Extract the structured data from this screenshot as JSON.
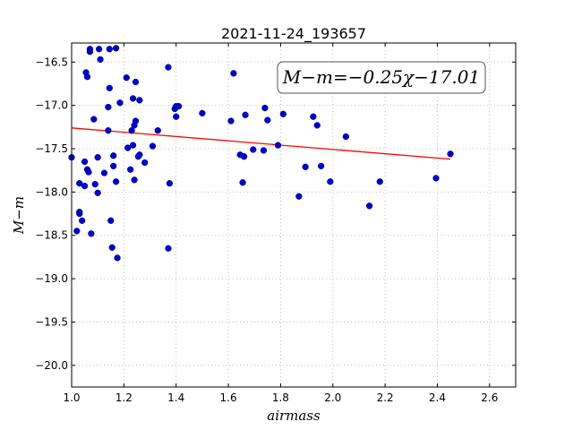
{
  "chart_data": {
    "type": "scatter",
    "title": "2021-11-24_193657",
    "xlabel": "airmass",
    "ylabel": "M−m",
    "xlim": [
      1.0,
      2.7
    ],
    "ylim": [
      -20.25,
      -16.28
    ],
    "y_inverted": true,
    "grid": true,
    "xticks": [
      1.0,
      1.2,
      1.4,
      1.6,
      1.8,
      2.0,
      2.2,
      2.4,
      2.6
    ],
    "xtick_labels": [
      "1.0",
      "1.2",
      "1.4",
      "1.6",
      "1.8",
      "2.0",
      "2.2",
      "2.4",
      "2.6"
    ],
    "yticks": [
      -16.5,
      -17.0,
      -17.5,
      -18.0,
      -18.5,
      -19.0,
      -19.5,
      -20.0
    ],
    "ytick_labels": [
      "−16.5",
      "−17.0",
      "−17.5",
      "−18.0",
      "−18.5",
      "−19.0",
      "−19.5",
      "−20.0"
    ],
    "annotation": "M−m=−0.25χ−17.01",
    "colors": {
      "points": "#0000cc",
      "fit": "#ff0000",
      "grid": "#b0b0b0"
    },
    "fit_line": {
      "x": [
        1.0,
        2.45
      ],
      "y": [
        -17.26,
        -17.62
      ]
    },
    "points": [
      [
        1.0,
        -17.6
      ],
      [
        1.02,
        -18.45
      ],
      [
        1.03,
        -17.9
      ],
      [
        1.03,
        -18.23
      ],
      [
        1.03,
        -18.25
      ],
      [
        1.04,
        -18.33
      ],
      [
        1.05,
        -17.65
      ],
      [
        1.05,
        -17.93
      ],
      [
        1.055,
        -16.62
      ],
      [
        1.06,
        -16.67
      ],
      [
        1.06,
        -17.74
      ],
      [
        1.065,
        -17.77
      ],
      [
        1.07,
        -16.35
      ],
      [
        1.07,
        -16.38
      ],
      [
        1.075,
        -18.48
      ],
      [
        1.085,
        -17.16
      ],
      [
        1.09,
        -17.91
      ],
      [
        1.1,
        -17.6
      ],
      [
        1.1,
        -18.01
      ],
      [
        1.105,
        -16.35
      ],
      [
        1.11,
        -16.47
      ],
      [
        1.125,
        -17.78
      ],
      [
        1.14,
        -17.02
      ],
      [
        1.14,
        -17.29
      ],
      [
        1.145,
        -16.35
      ],
      [
        1.145,
        -16.8
      ],
      [
        1.15,
        -18.33
      ],
      [
        1.155,
        -18.64
      ],
      [
        1.16,
        -17.58
      ],
      [
        1.16,
        -17.7
      ],
      [
        1.17,
        -16.34
      ],
      [
        1.17,
        -17.88
      ],
      [
        1.175,
        -18.76
      ],
      [
        1.185,
        -16.97
      ],
      [
        1.21,
        -16.68
      ],
      [
        1.215,
        -17.49
      ],
      [
        1.225,
        -17.74
      ],
      [
        1.23,
        -17.29
      ],
      [
        1.235,
        -16.92
      ],
      [
        1.235,
        -17.46
      ],
      [
        1.24,
        -17.23
      ],
      [
        1.24,
        -17.86
      ],
      [
        1.245,
        -16.73
      ],
      [
        1.245,
        -17.18
      ],
      [
        1.255,
        -17.59
      ],
      [
        1.26,
        -16.94
      ],
      [
        1.26,
        -17.57
      ],
      [
        1.28,
        -17.66
      ],
      [
        1.31,
        -17.47
      ],
      [
        1.33,
        -17.29
      ],
      [
        1.37,
        -16.56
      ],
      [
        1.37,
        -18.65
      ],
      [
        1.375,
        -17.9
      ],
      [
        1.395,
        -17.04
      ],
      [
        1.4,
        -17.01
      ],
      [
        1.4,
        -17.13
      ],
      [
        1.41,
        -17.01
      ],
      [
        1.5,
        -17.09
      ],
      [
        1.61,
        -17.18
      ],
      [
        1.62,
        -16.63
      ],
      [
        1.645,
        -17.57
      ],
      [
        1.655,
        -17.89
      ],
      [
        1.66,
        -17.59
      ],
      [
        1.665,
        -17.11
      ],
      [
        1.695,
        -17.51
      ],
      [
        1.735,
        -17.52
      ],
      [
        1.74,
        -17.03
      ],
      [
        1.75,
        -17.17
      ],
      [
        1.79,
        -17.46
      ],
      [
        1.81,
        -17.1
      ],
      [
        1.87,
        -18.05
      ],
      [
        1.895,
        -17.71
      ],
      [
        1.925,
        -17.13
      ],
      [
        1.94,
        -17.23
      ],
      [
        1.955,
        -17.7
      ],
      [
        1.99,
        -17.88
      ],
      [
        2.05,
        -17.36
      ],
      [
        2.14,
        -18.16
      ],
      [
        2.18,
        -17.88
      ],
      [
        2.395,
        -17.84
      ],
      [
        2.45,
        -17.56
      ]
    ]
  }
}
